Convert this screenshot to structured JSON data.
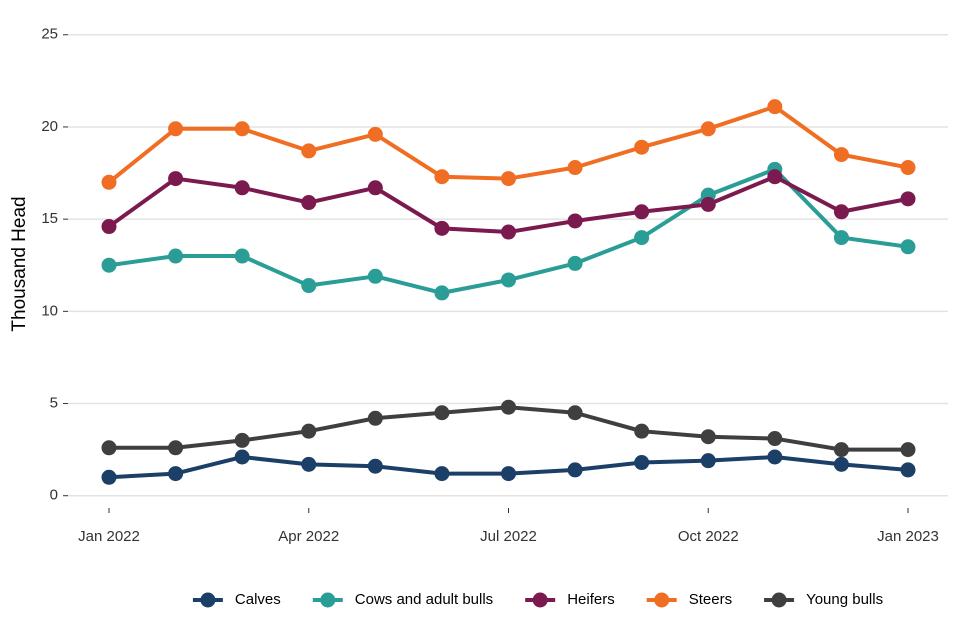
{
  "chart_data": {
    "type": "line",
    "y_label": "Thousand Head",
    "x": [
      "2022-01",
      "2022-02",
      "2022-03",
      "2022-04",
      "2022-05",
      "2022-06",
      "2022-07",
      "2022-08",
      "2022-09",
      "2022-10",
      "2022-11",
      "2022-12",
      "2023-01"
    ],
    "xticks": [
      {
        "value": "2022-01",
        "label": "Jan 2022"
      },
      {
        "value": "2022-04",
        "label": "Apr 2022"
      },
      {
        "value": "2022-07",
        "label": "Jul 2022"
      },
      {
        "value": "2022-10",
        "label": "Oct 2022"
      },
      {
        "value": "2023-01",
        "label": "Jan 2023"
      }
    ],
    "ylim": [
      -1.1,
      25.8
    ],
    "yticks": [
      0,
      5,
      10,
      15,
      20,
      25
    ],
    "grid": true,
    "legend": "bottom",
    "series": [
      {
        "name": "Calves",
        "color": "#1b3f66",
        "values": [
          1.0,
          1.2,
          2.1,
          1.7,
          1.6,
          1.2,
          1.2,
          1.4,
          1.8,
          1.9,
          2.1,
          1.7,
          1.4
        ]
      },
      {
        "name": "Cows and adult bulls",
        "color": "#2a9d96",
        "values": [
          12.5,
          13.0,
          13.0,
          11.4,
          11.9,
          11.0,
          11.7,
          12.6,
          14.0,
          16.3,
          17.7,
          14.0,
          13.5
        ]
      },
      {
        "name": "Heifers",
        "color": "#7a1a4e",
        "values": [
          14.6,
          17.2,
          16.7,
          15.9,
          16.7,
          14.5,
          14.3,
          14.9,
          15.4,
          15.8,
          17.3,
          15.4,
          16.1
        ]
      },
      {
        "name": "Steers",
        "color": "#f06e23",
        "values": [
          17.0,
          19.9,
          19.9,
          18.7,
          19.6,
          17.3,
          17.2,
          17.8,
          18.9,
          19.9,
          21.1,
          18.5,
          17.8
        ]
      },
      {
        "name": "Young bulls",
        "color": "#3f3f3f",
        "values": [
          2.6,
          2.6,
          3.0,
          3.5,
          4.2,
          4.5,
          4.8,
          4.5,
          3.5,
          3.2,
          3.1,
          2.5,
          2.5
        ]
      }
    ]
  }
}
